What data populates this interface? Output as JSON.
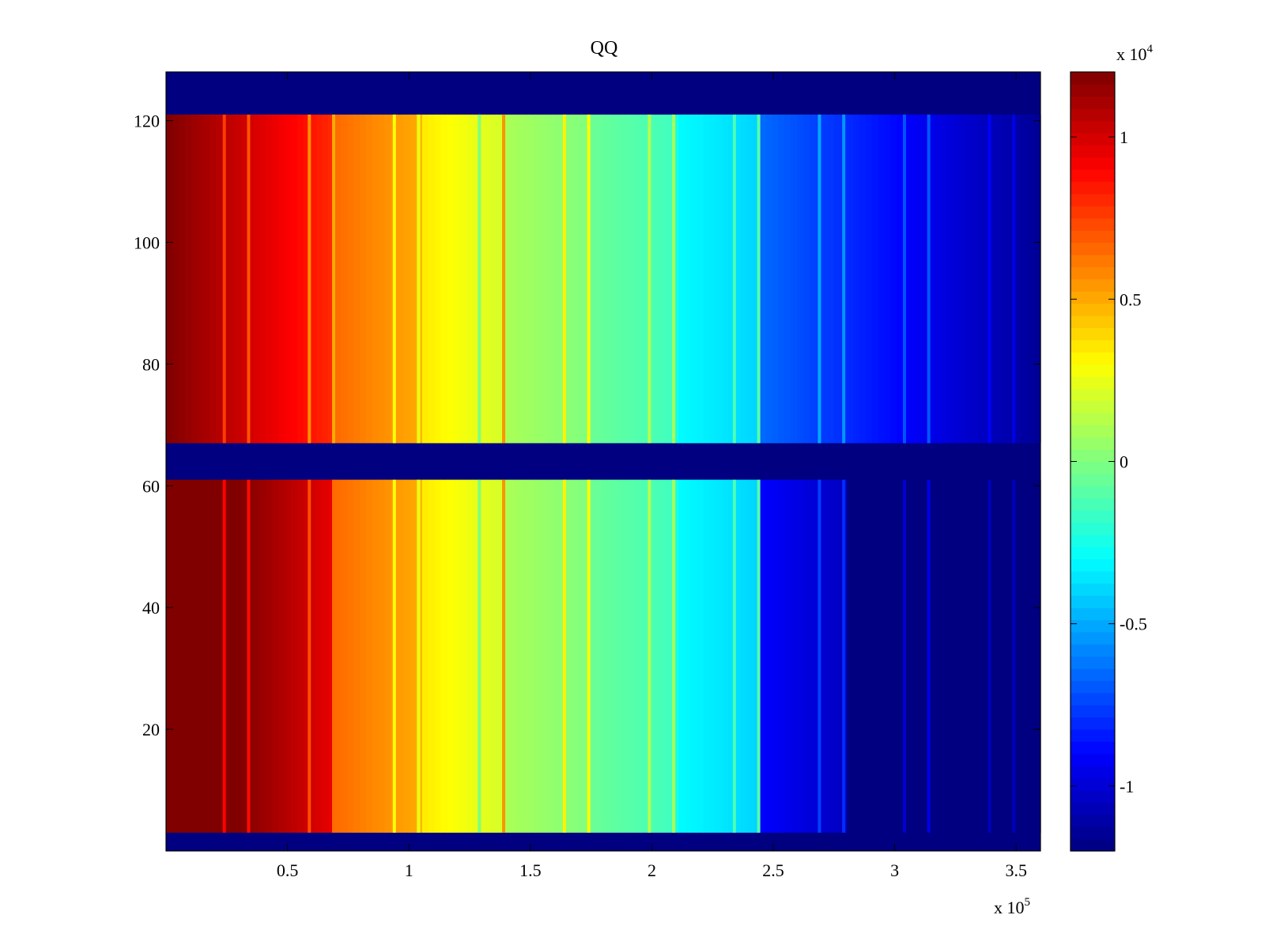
{
  "chart_data": {
    "type": "heatmap",
    "title": "QQ",
    "xlabel": "",
    "ylabel": "",
    "x_multiplier_label": "x 10",
    "x_multiplier_exponent": "5",
    "xlim": [
      0,
      360000
    ],
    "ylim": [
      0,
      128
    ],
    "x_ticks": [
      50000,
      100000,
      150000,
      200000,
      250000,
      300000,
      350000
    ],
    "x_tick_labels": [
      "0.5",
      "1",
      "1.5",
      "2",
      "2.5",
      "3",
      "3.5"
    ],
    "y_ticks": [
      20,
      40,
      60,
      80,
      100,
      120
    ],
    "y_tick_labels": [
      "20",
      "40",
      "60",
      "80",
      "100",
      "120"
    ],
    "colorbar": {
      "multiplier_label": "x 10",
      "multiplier_exponent": "4",
      "clim": [
        -12000,
        12000
      ],
      "ticks": [
        -10000,
        -5000,
        0,
        5000,
        10000
      ],
      "tick_labels": [
        "-1",
        "-0.5",
        "0",
        "0.5",
        "1"
      ],
      "colormap": "jet"
    },
    "empty_row_bands": [
      [
        0,
        3
      ],
      [
        61,
        67
      ],
      [
        121,
        128
      ]
    ],
    "panels": [
      {
        "name": "upper",
        "y_range": [
          67,
          121
        ],
        "value_profile": [
          {
            "x": 0,
            "value": 12000
          },
          {
            "x": 35000,
            "value": 10000
          },
          {
            "x": 69000,
            "value": 8000
          },
          {
            "x": 70000,
            "value": 6500
          },
          {
            "x": 104000,
            "value": 5000
          },
          {
            "x": 105000,
            "value": 3500
          },
          {
            "x": 139000,
            "value": 2000
          },
          {
            "x": 140000,
            "value": 1000
          },
          {
            "x": 174000,
            "value": 0
          },
          {
            "x": 175000,
            "value": -500
          },
          {
            "x": 209000,
            "value": -1500
          },
          {
            "x": 210000,
            "value": -3000
          },
          {
            "x": 244000,
            "value": -4000
          },
          {
            "x": 245000,
            "value": -6500
          },
          {
            "x": 280000,
            "value": -8000
          },
          {
            "x": 315000,
            "value": -9500
          },
          {
            "x": 360000,
            "value": -11500
          }
        ]
      },
      {
        "name": "lower",
        "y_range": [
          3,
          61
        ],
        "value_profile": [
          {
            "x": 0,
            "value": 12000
          },
          {
            "x": 30000,
            "value": 12000
          },
          {
            "x": 69000,
            "value": 9500
          },
          {
            "x": 70000,
            "value": 6500
          },
          {
            "x": 104000,
            "value": 5000
          },
          {
            "x": 105000,
            "value": 3500
          },
          {
            "x": 139000,
            "value": 2000
          },
          {
            "x": 140000,
            "value": 1000
          },
          {
            "x": 174000,
            "value": 0
          },
          {
            "x": 175000,
            "value": -500
          },
          {
            "x": 209000,
            "value": -1500
          },
          {
            "x": 210000,
            "value": -3000
          },
          {
            "x": 244000,
            "value": -4000
          },
          {
            "x": 245000,
            "value": -9000
          },
          {
            "x": 280000,
            "value": -10500
          },
          {
            "x": 281000,
            "value": -12000
          },
          {
            "x": 360000,
            "value": -12000
          }
        ]
      }
    ],
    "vertical_lines": [
      {
        "x": 24000,
        "delta": -3000
      },
      {
        "x": 34000,
        "delta": -3000
      },
      {
        "x": 59000,
        "delta": -3000
      },
      {
        "x": 69000,
        "delta": -3000
      },
      {
        "x": 94000,
        "delta": -2500
      },
      {
        "x": 104000,
        "delta": -2500
      },
      {
        "x": 129000,
        "delta": -2500
      },
      {
        "x": 139000,
        "delta": 3500
      },
      {
        "x": 164000,
        "delta": 3000
      },
      {
        "x": 174000,
        "delta": 3000
      },
      {
        "x": 199000,
        "delta": 2500
      },
      {
        "x": 209000,
        "delta": 2500
      },
      {
        "x": 234000,
        "delta": 2500
      },
      {
        "x": 244000,
        "delta": 3000
      },
      {
        "x": 269000,
        "delta": 2500
      },
      {
        "x": 279000,
        "delta": 2500
      },
      {
        "x": 304000,
        "delta": 2000
      },
      {
        "x": 314000,
        "delta": 2500
      },
      {
        "x": 339000,
        "delta": 1500
      },
      {
        "x": 349000,
        "delta": 1500
      }
    ]
  }
}
